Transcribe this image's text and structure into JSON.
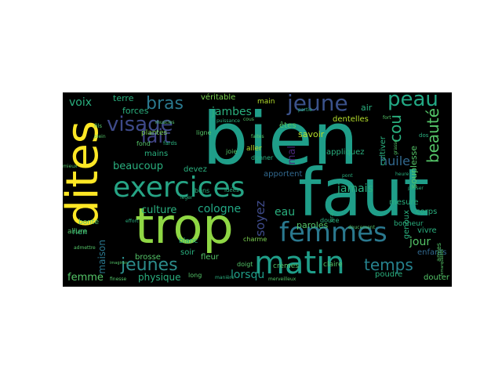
{
  "colors": {
    "background": "#ffffff",
    "panel": "#000000",
    "palette": [
      "#440154",
      "#482878",
      "#3e4a89",
      "#31688e",
      "#26828e",
      "#1f9e89",
      "#35b779",
      "#6ece58",
      "#b5de2b",
      "#fde725"
    ]
  },
  "words": [
    {
      "text": "bien",
      "color": "#1f9e89"
    },
    {
      "text": "faut",
      "color": "#1f9e89"
    },
    {
      "text": "trop",
      "color": "#8fd744"
    },
    {
      "text": "dites",
      "color": "#fde725"
    },
    {
      "text": "exercices",
      "color": "#26a485"
    },
    {
      "text": "matin",
      "color": "#1f9e89"
    },
    {
      "text": "femmes",
      "color": "#2a788e"
    },
    {
      "text": "visage",
      "color": "#3e4a89"
    },
    {
      "text": "jeune",
      "color": "#3b528b"
    },
    {
      "text": "peau",
      "color": "#22a884"
    },
    {
      "text": "beauté",
      "color": "#54c568"
    },
    {
      "text": "lait",
      "color": "#414487"
    },
    {
      "text": "bras",
      "color": "#2a788e"
    },
    {
      "text": "jeunes",
      "color": "#2c8d8c"
    },
    {
      "text": "temps",
      "color": "#26828e"
    },
    {
      "text": "cou",
      "color": "#2ab07f"
    },
    {
      "text": "huile",
      "color": "#31688e"
    },
    {
      "text": "soyez",
      "color": "#3e4a89"
    },
    {
      "text": "jambes",
      "color": "#2ab07f"
    },
    {
      "text": "lorsqu",
      "color": "#1f9e89"
    },
    {
      "text": "cologne",
      "color": "#22a884"
    },
    {
      "text": "beaucoup",
      "color": "#2ab07f"
    },
    {
      "text": "culture",
      "color": "#2ab07f"
    },
    {
      "text": "voix",
      "color": "#2ab07f"
    },
    {
      "text": "femme",
      "color": "#54c568"
    },
    {
      "text": "jamais",
      "color": "#2ab07f"
    },
    {
      "text": "jour",
      "color": "#54c568"
    },
    {
      "text": "eau",
      "color": "#2ab07f"
    },
    {
      "text": "mal",
      "color": "#482878"
    },
    {
      "text": "physique",
      "color": "#2ab07f"
    },
    {
      "text": "maison",
      "color": "#2a788e"
    },
    {
      "text": "forces",
      "color": "#2ab07f"
    },
    {
      "text": "terre",
      "color": "#2ab07f"
    },
    {
      "text": "véritable",
      "color": "#7ad151"
    },
    {
      "text": "main",
      "color": "#b5de2b"
    },
    {
      "text": "air",
      "color": "#2ab07f"
    },
    {
      "text": "êtes",
      "color": "#54c568"
    },
    {
      "text": "savoir",
      "color": "#b5de2b"
    },
    {
      "text": "dentelles",
      "color": "#b5de2b"
    },
    {
      "text": "paroles",
      "color": "#54c568"
    },
    {
      "text": "appliquez",
      "color": "#2ab07f"
    },
    {
      "text": "souplesse",
      "color": "#54c568"
    },
    {
      "text": "cultiver",
      "color": "#2ab07f"
    },
    {
      "text": "apportent",
      "color": "#31688e"
    },
    {
      "text": "devez",
      "color": "#2ab07f"
    },
    {
      "text": "fleur",
      "color": "#54c568"
    },
    {
      "text": "poudre",
      "color": "#2ab07f"
    },
    {
      "text": "enfants",
      "color": "#31688e"
    },
    {
      "text": "douter",
      "color": "#54c568"
    },
    {
      "text": "vivre",
      "color": "#2ab07f"
    },
    {
      "text": "corps",
      "color": "#2ab07f"
    },
    {
      "text": "genoux",
      "color": "#2ab07f"
    },
    {
      "text": "rien",
      "color": "#2ab07f"
    },
    {
      "text": "soir",
      "color": "#2ab07f"
    },
    {
      "text": "brosse",
      "color": "#54c568"
    },
    {
      "text": "mains",
      "color": "#2ab07f"
    },
    {
      "text": "fond",
      "color": "#54c568"
    },
    {
      "text": "plantes",
      "color": "#7ad151"
    },
    {
      "text": "bonté",
      "color": "#54c568"
    },
    {
      "text": "mesure",
      "color": "#2ab07f"
    },
    {
      "text": "bonheur",
      "color": "#2ab07f"
    },
    {
      "text": "allure",
      "color": "#54c568"
    },
    {
      "text": "crèmes",
      "color": "#54c568"
    },
    {
      "text": "blanc",
      "color": "#2ab07f"
    },
    {
      "text": "long",
      "color": "#54c568"
    },
    {
      "text": "claire",
      "color": "#54c568"
    },
    {
      "text": "douce",
      "color": "#2ab07f"
    },
    {
      "text": "bons",
      "color": "#2ab07f"
    },
    {
      "text": "aller",
      "color": "#b5de2b"
    },
    {
      "text": "joie",
      "color": "#54c568"
    },
    {
      "text": "donner",
      "color": "#2ab07f"
    },
    {
      "text": "charme",
      "color": "#7ad151"
    },
    {
      "text": "doigt",
      "color": "#54c568"
    },
    {
      "text": "fards",
      "color": "#2ab07f"
    },
    {
      "text": "ligne",
      "color": "#54c568"
    },
    {
      "text": "amies",
      "color": "#54c568"
    },
    {
      "text": "fils",
      "color": "#54c568"
    },
    {
      "text": "plein",
      "color": "#54c568"
    },
    {
      "text": "muscles",
      "color": "#54c568"
    },
    {
      "text": "gras",
      "color": "#2ab07f"
    },
    {
      "text": "cous",
      "color": "#54c568"
    },
    {
      "text": "idées",
      "color": "#2ab07f"
    },
    {
      "text": "léger",
      "color": "#2ab07f"
    },
    {
      "text": "doucement",
      "color": "#54c568"
    },
    {
      "text": "manière",
      "color": "#2ab07f"
    },
    {
      "text": "merveilleux",
      "color": "#54c568"
    },
    {
      "text": "faites",
      "color": "#54c568"
    },
    {
      "text": "fort",
      "color": "#54c568"
    },
    {
      "text": "dos",
      "color": "#2ab07f"
    },
    {
      "text": "grasse",
      "color": "#54c568"
    },
    {
      "text": "pont",
      "color": "#2ab07f"
    },
    {
      "text": "heure",
      "color": "#2ab07f"
    },
    {
      "text": "imagines",
      "color": "#54c568"
    },
    {
      "text": "admettre",
      "color": "#54c568"
    },
    {
      "text": "mieux",
      "color": "#54c568"
    },
    {
      "text": "finesse",
      "color": "#54c568"
    },
    {
      "text": "effort",
      "color": "#2ab07f"
    },
    {
      "text": "partie",
      "color": "#2ab07f"
    },
    {
      "text": "remarquables",
      "color": "#54c568"
    },
    {
      "text": "puissance",
      "color": "#2ab07f"
    },
    {
      "text": "passer",
      "color": "#2ab07f"
    },
    {
      "text": "montre",
      "color": "#54c568"
    }
  ]
}
